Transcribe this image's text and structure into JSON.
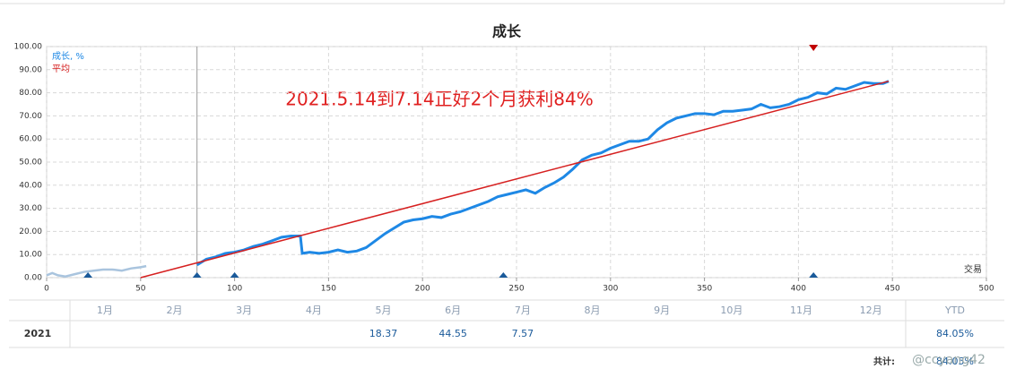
{
  "chart_data": {
    "type": "line",
    "title": "成长",
    "annotation": "2021.5.14到7.14正好2个月获利84%",
    "xlabel": "交易",
    "xlim": [
      0,
      500
    ],
    "xticks": [
      0,
      50,
      100,
      150,
      200,
      250,
      300,
      350,
      400,
      450,
      500
    ],
    "ylim": [
      0,
      100
    ],
    "yticks": [
      {
        "value": 0,
        "label": "0.00"
      },
      {
        "value": 10,
        "label": "10.00"
      },
      {
        "value": 20,
        "label": "20.00"
      },
      {
        "value": 30,
        "label": "30.00"
      },
      {
        "value": 40,
        "label": "40.00"
      },
      {
        "value": 50,
        "label": "50.00"
      },
      {
        "value": 60,
        "label": "60.00"
      },
      {
        "value": 70,
        "label": "70.00"
      },
      {
        "value": 80,
        "label": "80.00"
      },
      {
        "value": 90,
        "label": "90.00"
      },
      {
        "value": 100,
        "label": "100.00"
      }
    ],
    "grid": true,
    "legend": "top-left",
    "series": [
      {
        "color": "#a9c4de",
        "x": [
          0,
          3,
          6,
          10,
          15,
          20,
          25,
          30,
          35,
          40,
          45,
          50,
          53
        ],
        "values": [
          1,
          2,
          1,
          0.5,
          1.5,
          2.5,
          3,
          3.5,
          3.5,
          3,
          4,
          4.5,
          5
        ]
      },
      {
        "name": "成长, %",
        "color": "#1e88e5",
        "x": [
          80,
          85,
          90,
          95,
          100,
          105,
          110,
          115,
          120,
          125,
          130,
          135,
          136,
          140,
          145,
          150,
          155,
          160,
          165,
          170,
          175,
          180,
          185,
          190,
          195,
          200,
          205,
          210,
          215,
          220,
          225,
          230,
          235,
          240,
          245,
          250,
          255,
          260,
          265,
          270,
          275,
          280,
          285,
          290,
          295,
          300,
          305,
          310,
          315,
          320,
          325,
          330,
          335,
          340,
          345,
          350,
          355,
          360,
          365,
          370,
          375,
          380,
          385,
          390,
          395,
          400,
          405,
          410,
          415,
          420,
          425,
          430,
          435,
          440,
          445,
          448
        ],
        "values": [
          5.5,
          8,
          9,
          10.5,
          11,
          12,
          13.5,
          14.5,
          16,
          17.5,
          18,
          18,
          10.5,
          11,
          10.5,
          11,
          12,
          11,
          11.5,
          13,
          16,
          19,
          21.5,
          24,
          25,
          25.5,
          26.5,
          26,
          27.5,
          28.5,
          30,
          31.5,
          33,
          35,
          36,
          37,
          38,
          36.5,
          39,
          41,
          43.5,
          47,
          51,
          53,
          54,
          56,
          57.5,
          59,
          59,
          60,
          64,
          67,
          69,
          70,
          71,
          71,
          70.5,
          72,
          72,
          72.5,
          73,
          75,
          73.5,
          74,
          75,
          77,
          78,
          80,
          79.5,
          82,
          81.5,
          83,
          84.5,
          84,
          84,
          85
        ]
      },
      {
        "name": "平均",
        "color": "#d62020",
        "x": [
          50,
          448
        ],
        "values": [
          0,
          85
        ]
      }
    ],
    "vline": 80,
    "bottom_markers": [
      22,
      80,
      100,
      243,
      408
    ],
    "top_markers": [
      408
    ]
  },
  "table": {
    "months": [
      "1月",
      "2月",
      "3月",
      "4月",
      "5月",
      "6月",
      "7月",
      "8月",
      "9月",
      "10月",
      "11月",
      "12月"
    ],
    "ytd_header": "YTD",
    "rows": [
      {
        "year": "2021",
        "values": [
          null,
          null,
          null,
          null,
          18.37,
          44.55,
          7.57,
          null,
          null,
          null,
          null,
          null
        ],
        "ytd": "84.05%"
      }
    ],
    "total_label": "共计:",
    "total": "84.05%"
  },
  "watermark": "@ccyang42"
}
